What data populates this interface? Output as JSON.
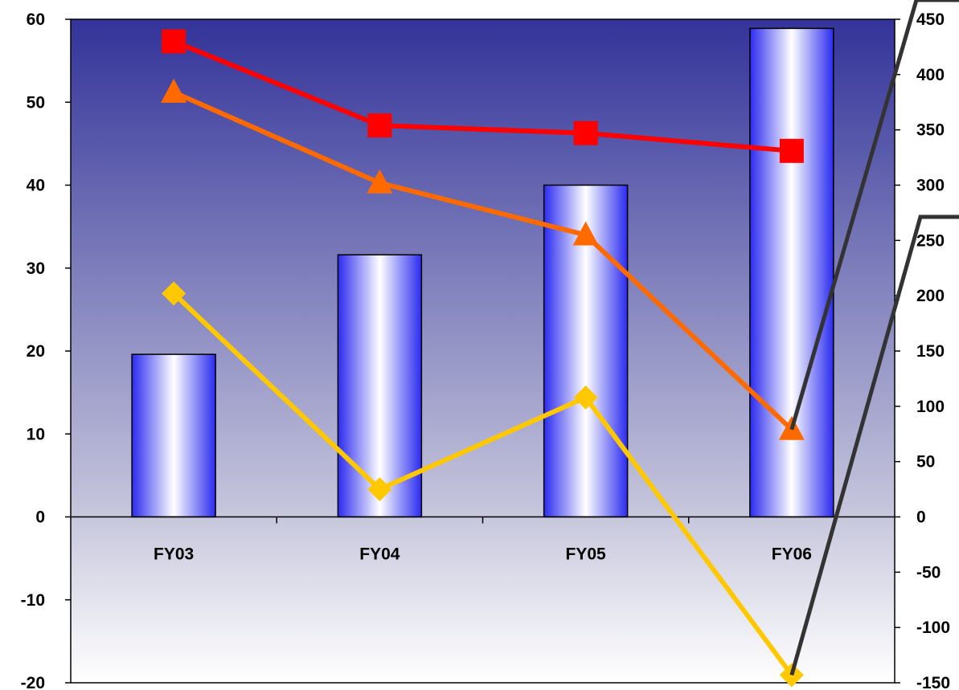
{
  "chart_data": {
    "type": "bar",
    "categories": [
      "FY03",
      "FY04",
      "FY05",
      "FY06"
    ],
    "bar_series": {
      "axis": "left",
      "values": [
        19.6,
        31.6,
        40.0,
        58.9
      ],
      "color": "#2b2bf0"
    },
    "line_series": [
      {
        "axis": "right",
        "marker": "square",
        "color": "#ff0000",
        "values": [
          430,
          354,
          347,
          331
        ]
      },
      {
        "axis": "right",
        "marker": "triangle",
        "color": "#ff6a00",
        "values": [
          384,
          302,
          255,
          79
        ]
      },
      {
        "axis": "right",
        "marker": "diamond",
        "color": "#ffc800",
        "values": [
          202,
          25,
          108,
          -143
        ]
      }
    ],
    "left_axis": {
      "min": -20,
      "max": 60,
      "step": 10,
      "tick_labels": [
        "-20",
        "-10",
        "0",
        "10",
        "20",
        "30",
        "40",
        "50",
        "60"
      ]
    },
    "right_axis": {
      "min": -150,
      "max": 450,
      "step": 50,
      "tick_labels": [
        "-150",
        "-100",
        "-50",
        "0",
        "50",
        "100",
        "150",
        "200",
        "250",
        "300",
        "350",
        "400",
        "450"
      ]
    },
    "plot_background": {
      "top": "#33339a",
      "zero_line": "#c7c7dd",
      "bottom": "#ffffff"
    },
    "grid": false,
    "legend": "none",
    "title": "",
    "xlabel": "",
    "ylabel": ""
  }
}
